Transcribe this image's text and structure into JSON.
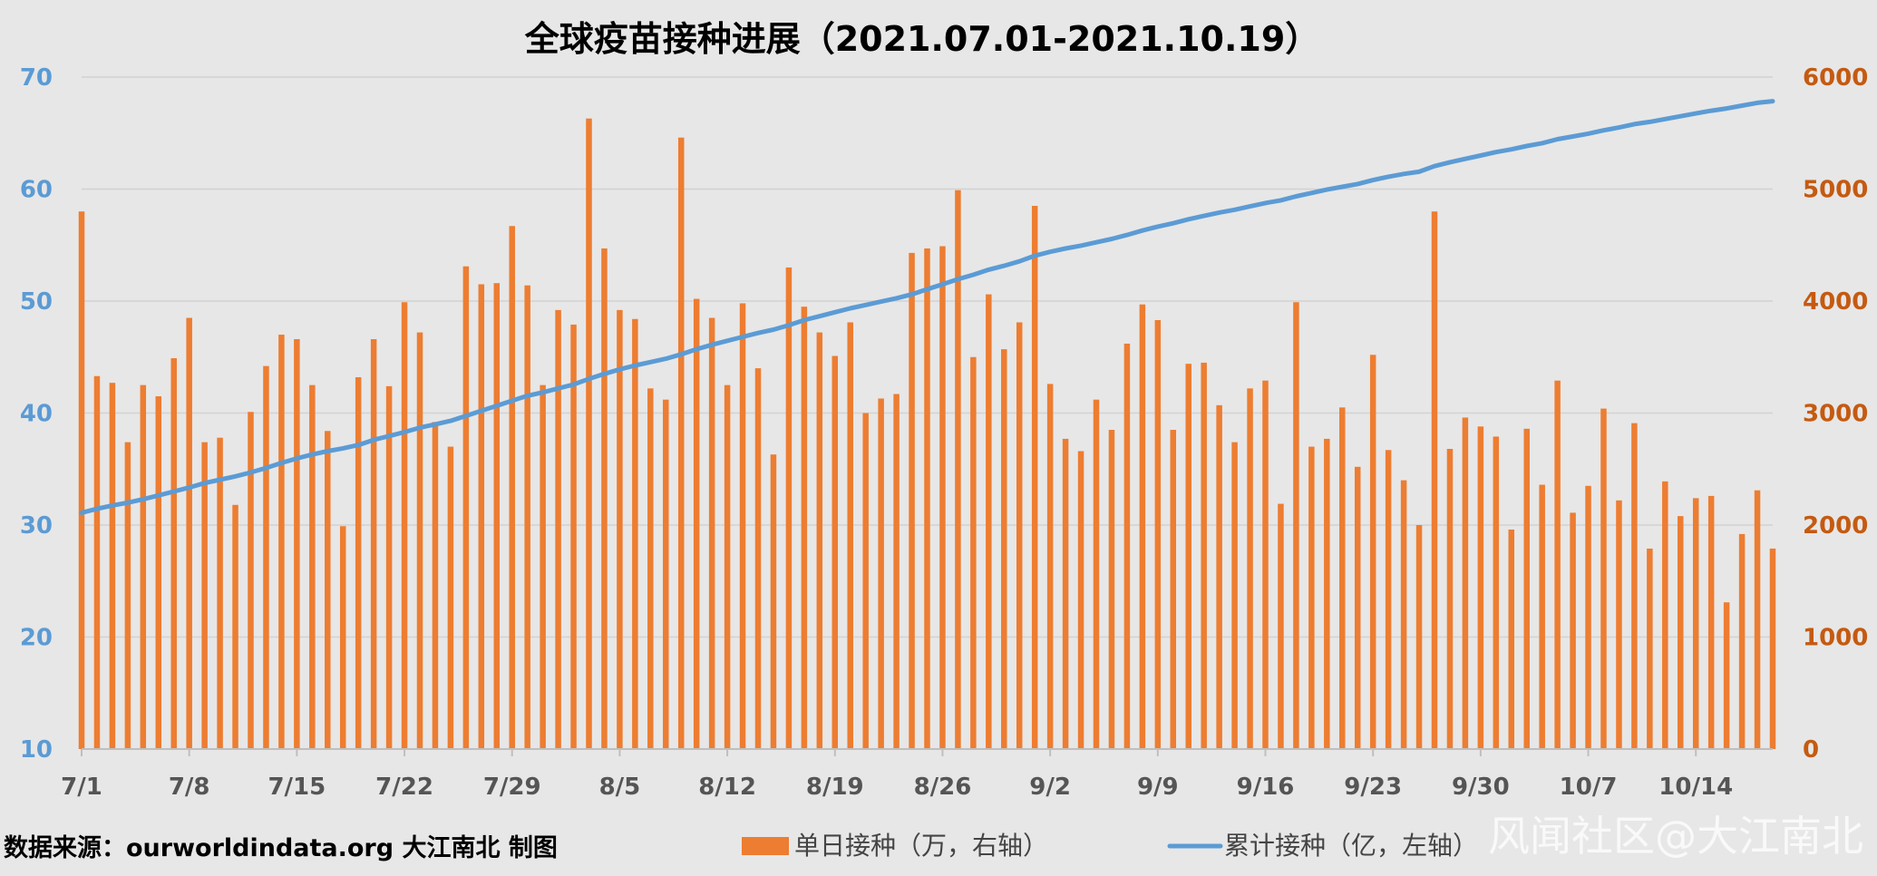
{
  "chart_data": {
    "type": "bar+line",
    "title": "全球疫苗接种进展（2021.07.01-2021.10.19）",
    "x_tick_labels": [
      "7/1",
      "7/8",
      "7/15",
      "7/22",
      "7/29",
      "8/5",
      "8/12",
      "8/19",
      "8/26",
      "9/2",
      "9/9",
      "9/16",
      "9/23",
      "9/30",
      "10/7",
      "10/14"
    ],
    "left_axis": {
      "label": "",
      "ylim": [
        10,
        70
      ],
      "ticks": [
        10,
        20,
        30,
        40,
        50,
        60,
        70
      ]
    },
    "right_axis": {
      "label": "",
      "ylim": [
        0,
        6000
      ],
      "ticks": [
        0,
        1000,
        2000,
        3000,
        4000,
        5000,
        6000
      ]
    },
    "grid": true,
    "legend_position": "bottom",
    "series": [
      {
        "name": "单日接种（万，右轴）",
        "type": "bar",
        "axis": "right",
        "color": "#ed7d31",
        "values": [
          4800,
          3330,
          3270,
          2740,
          3250,
          3150,
          3490,
          3850,
          2740,
          2780,
          2180,
          3010,
          3420,
          3700,
          3660,
          3250,
          2840,
          1990,
          3320,
          3660,
          3240,
          3990,
          3720,
          2920,
          2700,
          4310,
          4150,
          4160,
          4670,
          4140,
          3250,
          3920,
          3790,
          5630,
          4470,
          3920,
          3840,
          3220,
          3120,
          5460,
          4020,
          3850,
          3250,
          3980,
          3400,
          2630,
          4300,
          3950,
          3720,
          3510,
          3810,
          3000,
          3130,
          3170,
          4430,
          4470,
          4490,
          4990,
          3500,
          4060,
          3570,
          3810,
          4850,
          3260,
          2770,
          2660,
          3120,
          2850,
          3620,
          3970,
          3830,
          2850,
          3440,
          3450,
          3070,
          2740,
          3220,
          3290,
          2190,
          3990,
          2700,
          2770,
          3050,
          2520,
          3520,
          2670,
          2400,
          2000,
          4800,
          2680,
          2960,
          2880,
          2790,
          1960,
          2860,
          2360,
          3290,
          2110,
          2350,
          3040,
          2220,
          2910,
          1790,
          2390,
          2080,
          2240,
          2260,
          1310,
          1920,
          2310,
          1790
        ]
      },
      {
        "name": "累计接种（亿，左轴）",
        "type": "line",
        "axis": "left",
        "color": "#5b9bd5",
        "values": [
          31.1,
          31.45,
          31.75,
          32.0,
          32.3,
          32.65,
          33.0,
          33.35,
          33.75,
          34.05,
          34.35,
          34.7,
          35.1,
          35.55,
          35.95,
          36.3,
          36.6,
          36.85,
          37.15,
          37.6,
          37.95,
          38.3,
          38.7,
          39.0,
          39.3,
          39.75,
          40.2,
          40.65,
          41.1,
          41.55,
          41.85,
          42.2,
          42.55,
          43.05,
          43.5,
          43.9,
          44.25,
          44.55,
          44.85,
          45.25,
          45.7,
          46.1,
          46.45,
          46.8,
          47.15,
          47.45,
          47.85,
          48.3,
          48.65,
          49.0,
          49.35,
          49.65,
          49.95,
          50.25,
          50.6,
          51.05,
          51.5,
          51.95,
          52.35,
          52.8,
          53.15,
          53.55,
          54.05,
          54.4,
          54.7,
          54.95,
          55.25,
          55.55,
          55.9,
          56.3,
          56.65,
          56.95,
          57.3,
          57.6,
          57.9,
          58.15,
          58.45,
          58.75,
          59.0,
          59.35,
          59.65,
          59.95,
          60.2,
          60.45,
          60.8,
          61.1,
          61.35,
          61.55,
          62.05,
          62.4,
          62.7,
          63.0,
          63.3,
          63.55,
          63.85,
          64.1,
          64.45,
          64.7,
          64.95,
          65.25,
          65.5,
          65.8,
          66.0,
          66.25,
          66.5,
          66.75,
          67.0,
          67.2,
          67.45,
          67.7,
          67.85
        ]
      }
    ],
    "annotations": {
      "source": "数据来源：ourworldindata.org    大江南北 制图",
      "watermark": "风闻社区@大江南北"
    }
  }
}
